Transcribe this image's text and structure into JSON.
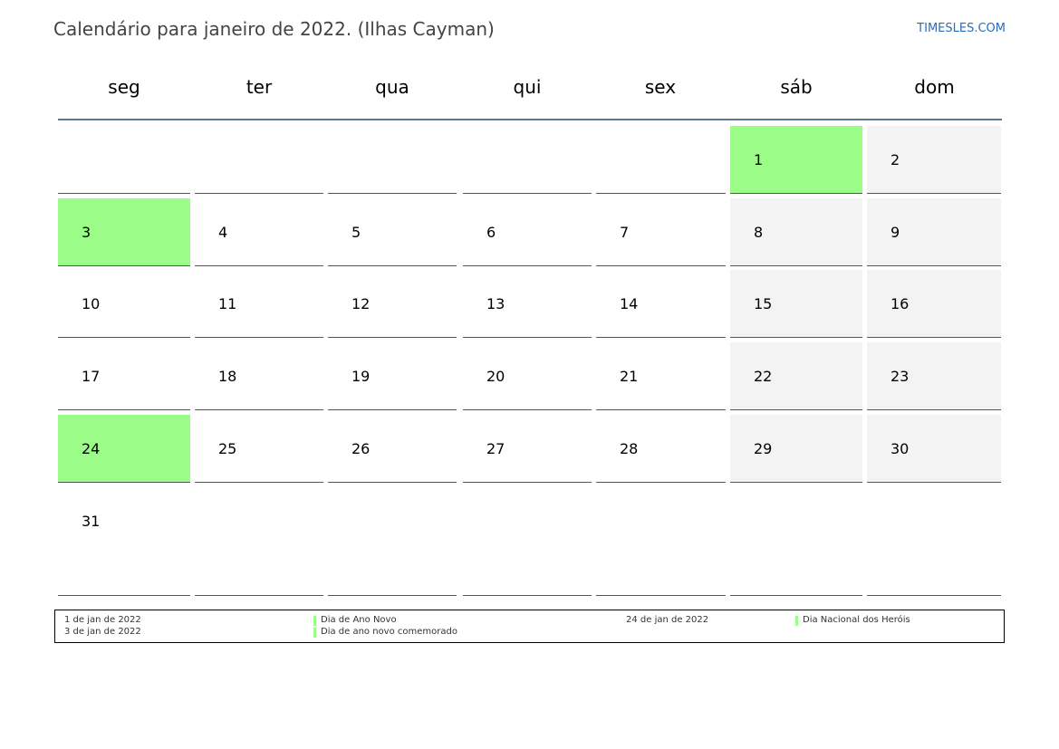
{
  "header": {
    "title": "Calendário para janeiro de 2022. (Ilhas Cayman)",
    "site": "TIMESLES.COM"
  },
  "weekdays": [
    "seg",
    "ter",
    "qua",
    "qui",
    "sex",
    "sáb",
    "dom"
  ],
  "weeks": [
    [
      "",
      "",
      "",
      "",
      "",
      "1",
      "2"
    ],
    [
      "3",
      "4",
      "5",
      "6",
      "7",
      "8",
      "9"
    ],
    [
      "10",
      "11",
      "12",
      "13",
      "14",
      "15",
      "16"
    ],
    [
      "17",
      "18",
      "19",
      "20",
      "21",
      "22",
      "23"
    ],
    [
      "24",
      "25",
      "26",
      "27",
      "28",
      "29",
      "30"
    ],
    [
      "31",
      "",
      "",
      "",
      "",
      "",
      ""
    ]
  ],
  "holidays": [
    "1",
    "3",
    "24"
  ],
  "colors": {
    "holiday": "#9bfd88",
    "weekend": "#f3f3f3",
    "header_line": "#5b7396",
    "link": "#2a6ebb"
  },
  "legend": {
    "entries": [
      {
        "date": "1 de jan de 2022",
        "name": "Dia de Ano Novo"
      },
      {
        "date": "3 de jan de 2022",
        "name": "Dia de ano novo comemorado"
      },
      {
        "date": "24 de jan de 2022",
        "name": "Dia Nacional dos Heróis"
      }
    ]
  }
}
